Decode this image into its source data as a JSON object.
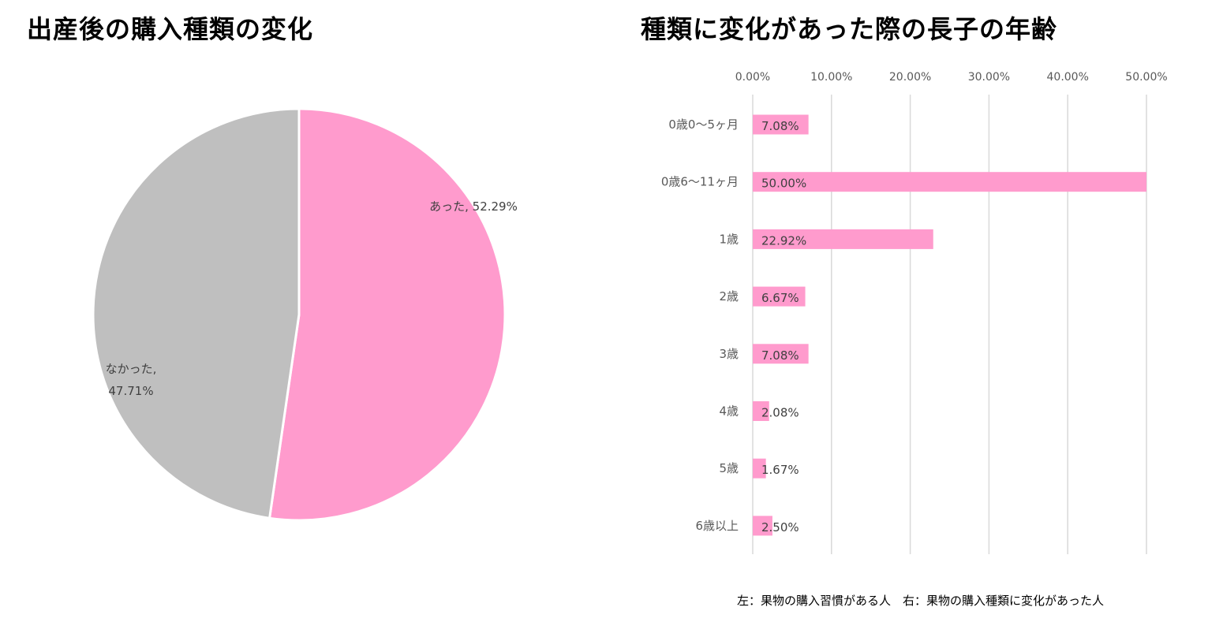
{
  "chart_data": [
    {
      "type": "pie",
      "title": "出産後の購入種類の変化",
      "slices": [
        {
          "label": "あった",
          "value": 52.29,
          "value_label": "52.29%",
          "color": "#ff9bcd"
        },
        {
          "label": "なかった",
          "value": 47.71,
          "value_label": "47.71%",
          "color": "#bfbfbf"
        }
      ],
      "start_angle": "12 o'clock",
      "direction": "clockwise",
      "separator_color": "#ffffff"
    },
    {
      "type": "bar",
      "orientation": "horizontal",
      "title": "種類に変化があった際の長子の年齢",
      "categories": [
        "0歳0〜5ヶ月",
        "0歳6〜11ヶ月",
        "1歳",
        "2歳",
        "3歳",
        "4歳",
        "5歳",
        "6歳以上"
      ],
      "values": [
        7.08,
        50.0,
        22.92,
        6.67,
        7.08,
        2.08,
        1.67,
        2.5
      ],
      "value_labels": [
        "7.08%",
        "50.00%",
        "22.92%",
        "6.67%",
        "7.08%",
        "2.08%",
        "1.67%",
        "2.50%"
      ],
      "xlim": [
        0,
        50
      ],
      "x_ticks": [
        0,
        10,
        20,
        30,
        40,
        50
      ],
      "x_tick_labels": [
        "0.00%",
        "10.00%",
        "20.00%",
        "30.00%",
        "40.00%",
        "50.00%"
      ],
      "x_axis_position": "top",
      "grid": true,
      "bar_color": "#ff9bcd",
      "grid_color": "#d9d9d9"
    }
  ],
  "footnote": "左：果物の購入習慣がある人　右：果物の購入種類に変化があった人"
}
